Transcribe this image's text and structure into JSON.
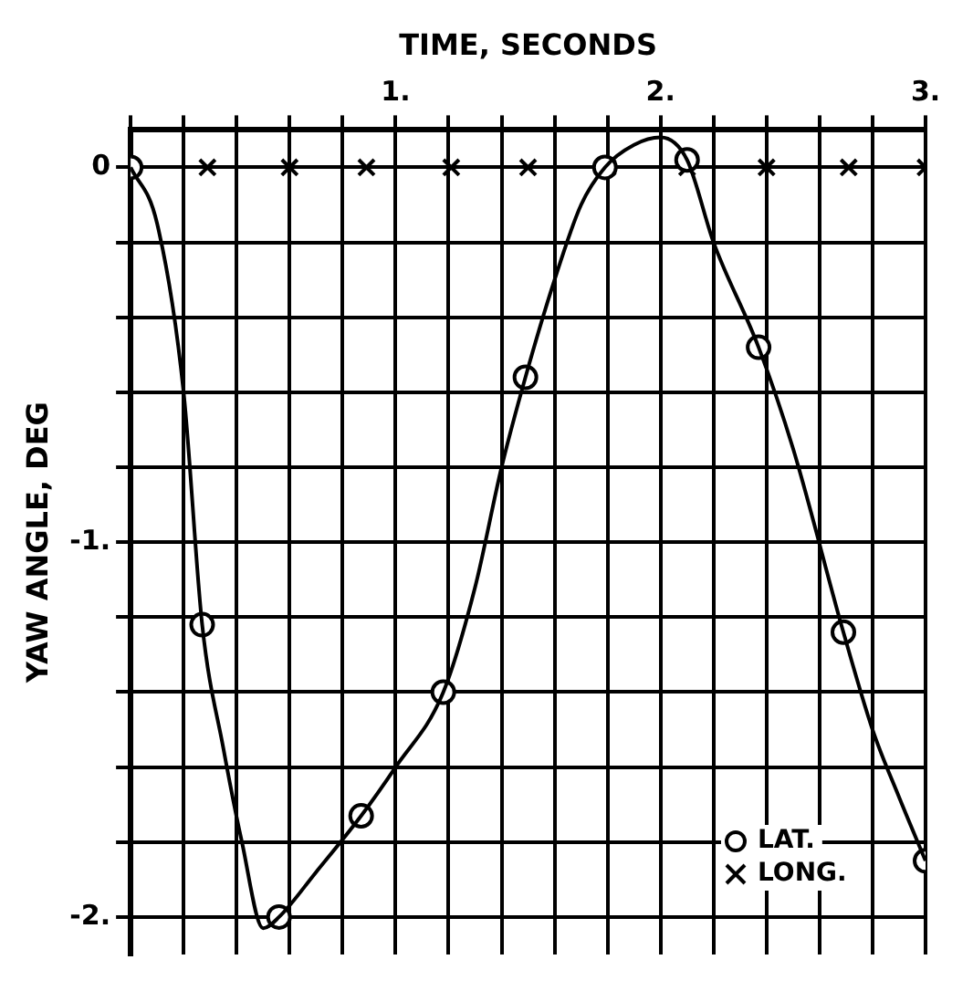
{
  "chart_data": {
    "type": "line",
    "xlabel": "TIME, SECONDS",
    "ylabel": "YAW ANGLE, DEG",
    "xlim": [
      0,
      3
    ],
    "ylim": [
      -2.1,
      0.1
    ],
    "xticks": [
      {
        "value": 0,
        "label": null
      },
      {
        "value": 0.2,
        "label": null
      },
      {
        "value": 0.4,
        "label": null
      },
      {
        "value": 0.6,
        "label": null
      },
      {
        "value": 0.8,
        "label": null
      },
      {
        "value": 1,
        "label": "1."
      },
      {
        "value": 1.2,
        "label": null
      },
      {
        "value": 1.4,
        "label": null
      },
      {
        "value": 1.6,
        "label": null
      },
      {
        "value": 1.8,
        "label": null
      },
      {
        "value": 2,
        "label": "2."
      },
      {
        "value": 2.2,
        "label": null
      },
      {
        "value": 2.4,
        "label": null
      },
      {
        "value": 2.6,
        "label": null
      },
      {
        "value": 2.8,
        "label": null
      },
      {
        "value": 3,
        "label": "3."
      }
    ],
    "yticks": [
      0,
      {
        "value": -0.2,
        "label": null
      },
      {
        "value": -0.4,
        "label": null
      },
      {
        "value": -0.6,
        "label": null
      },
      {
        "value": -0.8,
        "label": null
      },
      {
        "value": -1,
        "label": "-1."
      },
      {
        "value": -1.2,
        "label": null
      },
      {
        "value": -1.4,
        "label": null
      },
      {
        "value": -1.6,
        "label": null
      },
      {
        "value": -1.8,
        "label": null
      },
      {
        "value": -2,
        "label": "-2."
      }
    ],
    "grid": true,
    "legend": "bottom right",
    "series": [
      {
        "type": "line",
        "marker": "none",
        "color": "#000000",
        "x": [
          0,
          0.1,
          0.2,
          0.27,
          0.35,
          0.42,
          0.5,
          0.56,
          0.7,
          0.87,
          1.0,
          1.18,
          1.3,
          1.4,
          1.49,
          1.6,
          1.7,
          1.79,
          1.9,
          2.0,
          2.1,
          2.2,
          2.37,
          2.5,
          2.69,
          2.8,
          2.9,
          3.0
        ],
        "values": [
          0,
          -0.15,
          -0.6,
          -1.22,
          -1.55,
          -1.8,
          -2.03,
          -2.0,
          -1.88,
          -1.73,
          -1.6,
          -1.4,
          -1.12,
          -0.8,
          -0.56,
          -0.3,
          -0.1,
          0,
          0.06,
          0.08,
          0.02,
          -0.2,
          -0.48,
          -0.75,
          -1.24,
          -1.5,
          -1.68,
          -1.85
        ]
      },
      {
        "type": "scatter",
        "name": "LAT.",
        "marker": "circle",
        "color": "#000000",
        "x": [
          0,
          0.27,
          0.56,
          0.87,
          1.18,
          1.49,
          1.79,
          2.1,
          2.37,
          2.69,
          3.0
        ],
        "values": [
          0,
          -1.22,
          -2.0,
          -1.73,
          -1.4,
          -0.56,
          0,
          0.02,
          -0.48,
          -1.24,
          -1.85
        ]
      },
      {
        "type": "scatter",
        "name": "LONG.",
        "marker": "cross",
        "color": "#000000",
        "x": [
          0.29,
          0.6,
          0.89,
          1.21,
          1.5,
          1.8,
          2.1,
          2.4,
          2.71,
          3.0
        ],
        "values": [
          0,
          0,
          0,
          0,
          0,
          0,
          0,
          0,
          0,
          0
        ]
      }
    ]
  }
}
